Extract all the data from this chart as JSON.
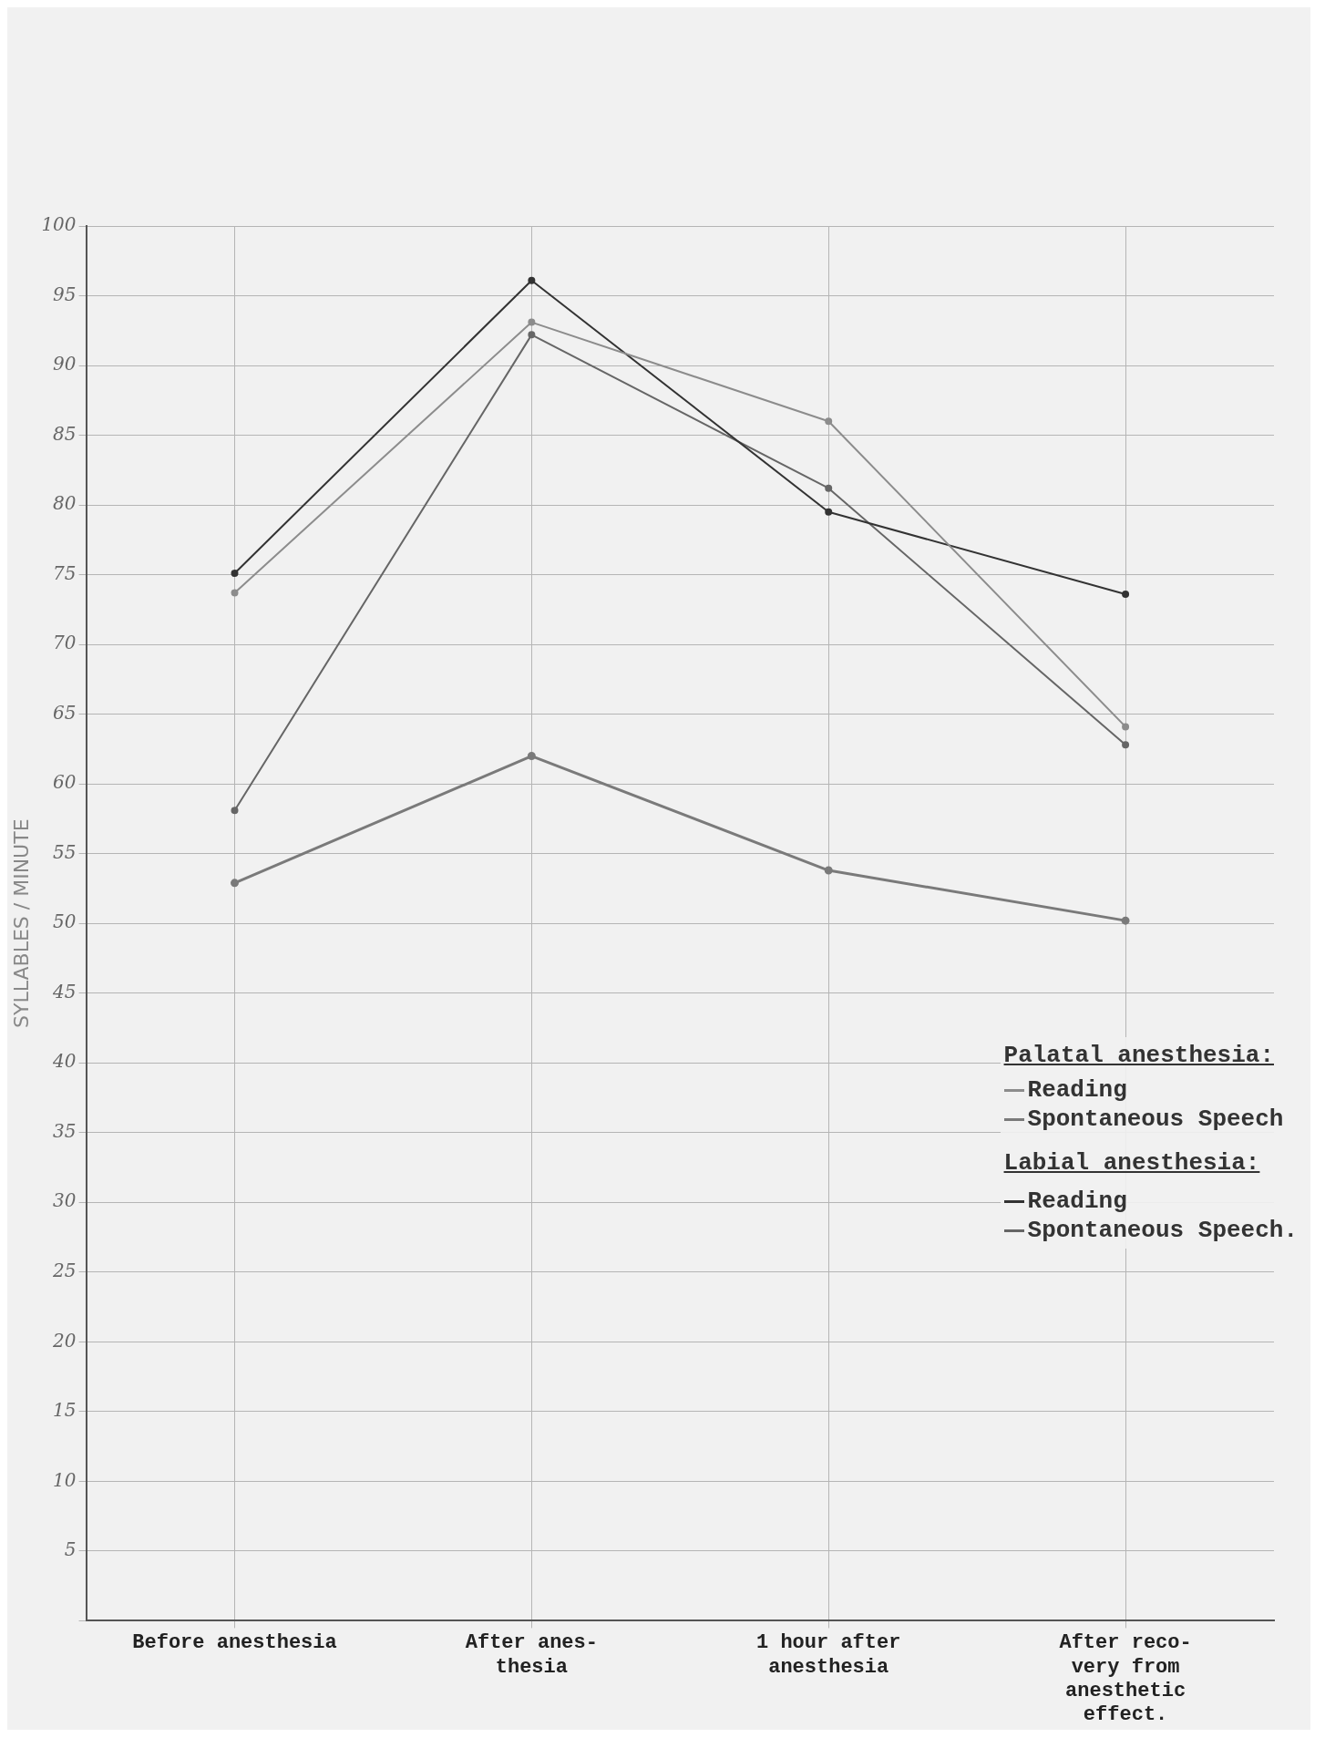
{
  "chart_data": {
    "type": "line",
    "ylabel": "SYLLABLES / MINUTE",
    "categories": [
      "Before anesthesia",
      "After anes-\nthesia",
      "1 hour after\nanesthesia",
      "After reco-\nvery from\nanesthetic\neffect."
    ],
    "series": [
      {
        "name": "Reading",
        "color": "#8c8c8c",
        "values": [
          73.7,
          93.1,
          86,
          64.1
        ]
      },
      {
        "name": "Spontaneous Speech",
        "color": "#7a7a7a",
        "values": [
          52.9,
          62,
          53.8,
          50.2
        ]
      },
      {
        "name": "Reading",
        "color": "#333333",
        "values": [
          75.1,
          96.1,
          79.5,
          73.6
        ]
      },
      {
        "name": "Spontaneous Speech.",
        "color": "#666666",
        "values": [
          58.1,
          92.2,
          81.2,
          62.8
        ]
      }
    ],
    "annotations": [
      "Palatal anesthesia:",
      "Labial anesthesia:"
    ],
    "ylim": [
      0,
      100
    ],
    "yticks": [
      {
        "value": 0,
        "label": null
      },
      5,
      10,
      15,
      20,
      25,
      30,
      35,
      40,
      45,
      50,
      55,
      60,
      65,
      70,
      75,
      80,
      85,
      90,
      95,
      100
    ],
    "grid": true,
    "legend": "bottom right",
    "marker": "circle",
    "line_style": "solid"
  }
}
